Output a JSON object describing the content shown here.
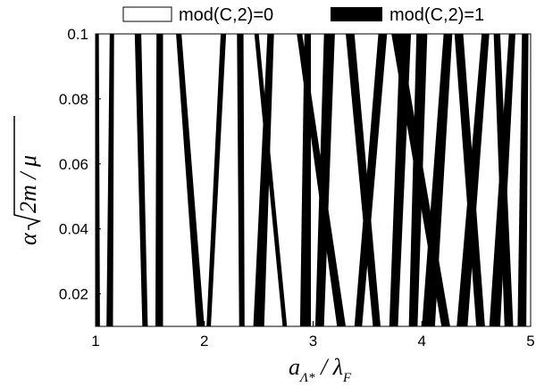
{
  "chart_data": {
    "type": "heatmap",
    "title": "",
    "legend": {
      "placement": "top",
      "entries": [
        {
          "label": "mod(C,2)=0",
          "color": "#ffffff"
        },
        {
          "label": "mod(C,2)=1",
          "color": "#000000"
        }
      ]
    },
    "xlabel": {
      "a": "a",
      "sub": "Λ*",
      "rest": " / λ",
      "sub2": "F"
    },
    "ylabel": {
      "alpha": "α",
      "inner": "2m / μ"
    },
    "xlim": [
      1,
      5
    ],
    "ylim": [
      0.01,
      0.1
    ],
    "xticks": [
      1,
      2,
      3,
      4,
      5
    ],
    "xtick_labels": [
      "1",
      "2",
      "3",
      "4",
      "5"
    ],
    "yticks": [
      0.02,
      0.04,
      0.06,
      0.08,
      0.1
    ],
    "ytick_labels": [
      "0.02",
      "0.04",
      "0.06",
      "0.08",
      "0.1"
    ],
    "grid": false,
    "regions_mod1": [
      {
        "x_bottom": [
          1.0,
          1.04
        ],
        "x_top": [
          1.0,
          1.03
        ]
      },
      {
        "x_bottom": [
          1.1,
          1.16
        ],
        "x_top": [
          1.13,
          1.17
        ]
      },
      {
        "x_bottom": [
          1.43,
          1.48
        ],
        "x_top": [
          1.36,
          1.42
        ]
      },
      {
        "x_bottom": [
          1.55,
          1.62
        ],
        "x_top": [
          1.56,
          1.62
        ]
      },
      {
        "x_bottom": [
          1.93,
          2.0
        ],
        "x_top": [
          1.74,
          1.79
        ]
      },
      {
        "x_bottom": [
          2.02,
          2.06
        ],
        "x_top": [
          2.15,
          2.2
        ]
      },
      {
        "x_bottom": [
          2.32,
          2.37
        ],
        "x_top": [
          2.3,
          2.36
        ]
      },
      {
        "x_bottom": [
          2.45,
          2.55
        ],
        "x_top": [
          2.58,
          2.64
        ]
      },
      {
        "x_bottom": [
          2.72,
          2.76
        ],
        "x_top": [
          2.46,
          2.5
        ]
      },
      {
        "x_bottom": [
          2.88,
          2.98
        ],
        "x_top": [
          2.92,
          2.98
        ]
      },
      {
        "x_bottom": [
          3.02,
          3.1
        ],
        "x_top": [
          3.1,
          3.2
        ]
      },
      {
        "x_bottom": [
          3.22,
          3.3
        ],
        "x_top": [
          2.85,
          2.9
        ]
      },
      {
        "x_bottom": [
          3.38,
          3.45
        ],
        "x_top": [
          3.6,
          3.68
        ]
      },
      {
        "x_bottom": [
          3.55,
          3.62
        ],
        "x_top": [
          3.3,
          3.38
        ]
      },
      {
        "x_bottom": [
          3.7,
          3.78
        ],
        "x_top": [
          3.8,
          3.9
        ]
      },
      {
        "x_bottom": [
          3.88,
          3.96
        ],
        "x_top": [
          3.95,
          4.05
        ]
      },
      {
        "x_bottom": [
          4.0,
          4.12
        ],
        "x_top": [
          4.2,
          4.28
        ]
      },
      {
        "x_bottom": [
          4.18,
          4.26
        ],
        "x_top": [
          3.72,
          3.8
        ]
      },
      {
        "x_bottom": [
          4.32,
          4.42
        ],
        "x_top": [
          4.55,
          4.62
        ]
      },
      {
        "x_bottom": [
          4.5,
          4.58
        ],
        "x_top": [
          4.3,
          4.38
        ]
      },
      {
        "x_bottom": [
          4.62,
          4.72
        ],
        "x_top": [
          4.8,
          4.86
        ]
      },
      {
        "x_bottom": [
          4.76,
          4.84
        ],
        "x_top": [
          4.66,
          4.72
        ]
      },
      {
        "x_bottom": [
          4.88,
          4.96
        ],
        "x_top": [
          4.92,
          4.98
        ]
      }
    ]
  }
}
